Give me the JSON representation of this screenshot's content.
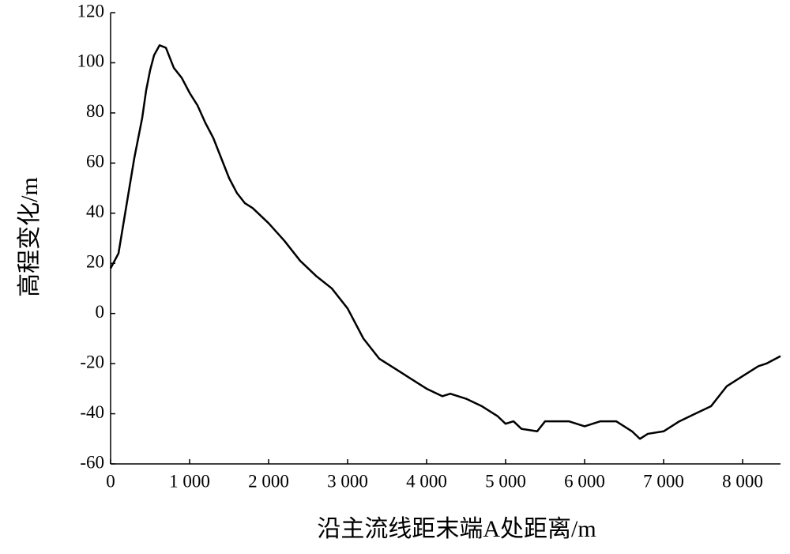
{
  "chart_data": {
    "type": "line",
    "x_label": "沿主流线距末端A处距离/m",
    "y_label": "高程变化/m",
    "x": [
      0,
      100,
      200,
      300,
      400,
      450,
      500,
      550,
      620,
      700,
      800,
      900,
      1000,
      1100,
      1200,
      1300,
      1400,
      1500,
      1600,
      1700,
      1800,
      1900,
      2000,
      2200,
      2400,
      2600,
      2800,
      3000,
      3200,
      3400,
      3600,
      3800,
      4000,
      4200,
      4300,
      4500,
      4700,
      4900,
      5000,
      5100,
      5200,
      5400,
      5500,
      5800,
      6000,
      6200,
      6400,
      6600,
      6700,
      6800,
      7000,
      7200,
      7400,
      7600,
      7800,
      8000,
      8200,
      8300,
      8480
    ],
    "series": [
      {
        "color": "#000000",
        "values": [
          18,
          24,
          43,
          62,
          78,
          89,
          97,
          103,
          107,
          106,
          98,
          94,
          88,
          83,
          76,
          70,
          62,
          54,
          48,
          44,
          42,
          39,
          36,
          29,
          21,
          15,
          10,
          2,
          -10,
          -18,
          -22,
          -26,
          -30,
          -33,
          -32,
          -34,
          -37,
          -41,
          -44,
          -43,
          -46,
          -47,
          -43,
          -43,
          -45,
          -43,
          -43,
          -47,
          -50,
          -48,
          -47,
          -43,
          -40,
          -37,
          -29,
          -25,
          -21,
          -20,
          -17
        ]
      }
    ],
    "xlim": [
      0,
      8480
    ],
    "xticks": [
      0,
      {
        "value": 1000,
        "label": "1 000"
      },
      {
        "value": 2000,
        "label": "2 000"
      },
      {
        "value": 3000,
        "label": "3 000"
      },
      {
        "value": 4000,
        "label": "4 000"
      },
      {
        "value": 5000,
        "label": "5 000"
      },
      {
        "value": 6000,
        "label": "6 000"
      },
      {
        "value": 7000,
        "label": "7 000"
      },
      {
        "value": 8000,
        "label": "8 000"
      }
    ],
    "ylim": [
      -60,
      120
    ],
    "yticks": [
      -60,
      -40,
      -20,
      0,
      20,
      40,
      60,
      80,
      100,
      120
    ]
  }
}
